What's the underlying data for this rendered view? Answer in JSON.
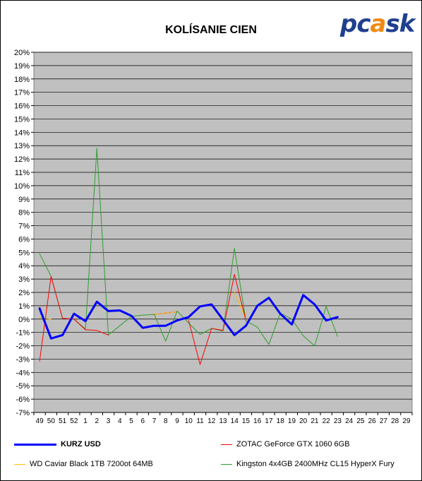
{
  "logo_text": "pcask",
  "chart_data": {
    "type": "line",
    "title": "KOLÍSANIE CIEN",
    "xlabel": "",
    "ylabel": "",
    "ylim": [
      -7,
      20
    ],
    "ytick_step": 1,
    "grid": true,
    "legend_position": "bottom",
    "categories": [
      "49",
      "50",
      "51",
      "52",
      "1",
      "2",
      "3",
      "4",
      "5",
      "6",
      "7",
      "8",
      "9",
      "10",
      "11",
      "12",
      "13",
      "14",
      "15",
      "16",
      "17",
      "18",
      "19",
      "20",
      "21",
      "22",
      "23",
      "24",
      "25",
      "26",
      "27",
      "28",
      "29"
    ],
    "series": [
      {
        "name": "KURZ USD",
        "color": "#0000ff",
        "width": 3,
        "dash": "",
        "values": [
          0.8,
          -1.45,
          -1.2,
          0.4,
          -0.15,
          1.3,
          0.6,
          0.65,
          0.25,
          -0.65,
          -0.5,
          -0.5,
          -0.1,
          0.15,
          0.95,
          1.1,
          -0.05,
          -1.2,
          -0.5,
          1.0,
          1.6,
          0.4,
          -0.4,
          1.8,
          1.1,
          -0.1,
          0.15,
          null,
          null,
          null,
          null,
          null,
          null
        ]
      },
      {
        "name": "ZOTAC GeForce GTX 1060 6GB",
        "color": "#ff0000",
        "width": 1,
        "dash": "",
        "values": [
          -3.15,
          3.2,
          0.05,
          0.0,
          -0.8,
          -0.85,
          -1.2,
          null,
          null,
          null,
          null,
          null,
          null,
          -0.1,
          -3.4,
          -0.7,
          -0.85,
          3.35,
          -0.1,
          null,
          null,
          null,
          null,
          null,
          null,
          null,
          null,
          null,
          null,
          null,
          null,
          null,
          null
        ]
      },
      {
        "name": "WD Caviar Black 1TB 7200ot 64MB",
        "color": "#ffc000",
        "width": 1,
        "dash": "",
        "values": [
          0.1,
          0.0,
          null,
          null,
          null,
          null,
          null,
          null,
          null,
          null,
          null,
          null,
          null,
          null,
          null,
          null,
          null,
          2.0,
          0.0,
          null,
          null,
          null,
          null,
          null,
          null,
          null,
          null,
          null,
          null,
          null,
          null,
          null,
          null
        ]
      },
      {
        "name": "Kingston 4x4GB 2400MHz CL15 HyperX Fury",
        "color": "#2e9e2e",
        "width": 1,
        "dash": "",
        "values": [
          4.9,
          3.2,
          0.05,
          0.0,
          -0.75,
          12.8,
          -1.2,
          -0.5,
          0.2,
          0.3,
          0.35,
          -1.65,
          0.6,
          -0.3,
          -1.15,
          -0.7,
          -0.9,
          5.3,
          -0.15,
          -0.6,
          -1.9,
          0.45,
          0.0,
          -1.25,
          -2.0,
          0.95,
          -1.3,
          null,
          null,
          null,
          null,
          null,
          null
        ]
      },
      {
        "name": "",
        "color": "#f0a030",
        "width": 2,
        "dash": "4,3",
        "values": [
          null,
          null,
          null,
          null,
          null,
          null,
          null,
          null,
          null,
          null,
          0.35,
          0.45,
          0.55,
          null,
          null,
          null,
          null,
          null,
          null,
          null,
          null,
          null,
          null,
          null,
          null,
          null,
          null,
          null,
          null,
          null,
          null,
          null,
          null
        ]
      }
    ]
  }
}
